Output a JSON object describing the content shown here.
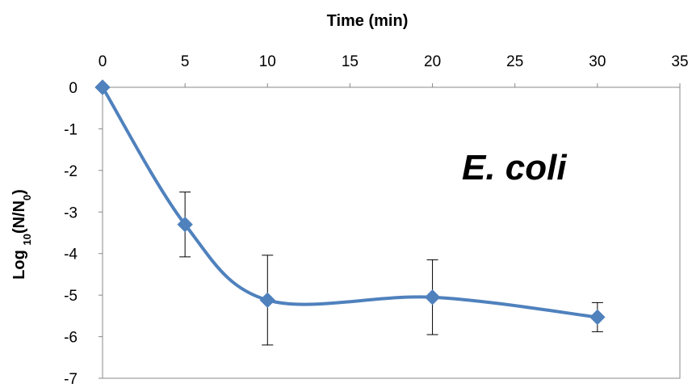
{
  "chart_data": {
    "type": "line",
    "title": "",
    "xlabel": "Time (min)",
    "ylabel": {
      "prefix": "Log ",
      "subscript": "10",
      "middle": "(N/N",
      "subscript2": "0",
      "suffix": ")"
    },
    "xlim": [
      0,
      35
    ],
    "ylim": [
      -7,
      0
    ],
    "x_ticks": [
      0,
      5,
      10,
      15,
      20,
      25,
      30,
      35
    ],
    "y_ticks": [
      0,
      -1,
      -2,
      -3,
      -4,
      -5,
      -6,
      -7
    ],
    "x_axis_position": "top",
    "grid": false,
    "smooth": true,
    "annotation": "E. coli",
    "series": [
      {
        "color": "#4f81bd",
        "marker": "diamond",
        "points": [
          {
            "x": 0,
            "y": 0,
            "err": 0
          },
          {
            "x": 5,
            "y": -3.3,
            "err": 0.78
          },
          {
            "x": 10,
            "y": -5.12,
            "err": 1.08
          },
          {
            "x": 20,
            "y": -5.05,
            "err": 0.9
          },
          {
            "x": 30,
            "y": -5.53,
            "err": 0.35
          }
        ]
      }
    ]
  }
}
